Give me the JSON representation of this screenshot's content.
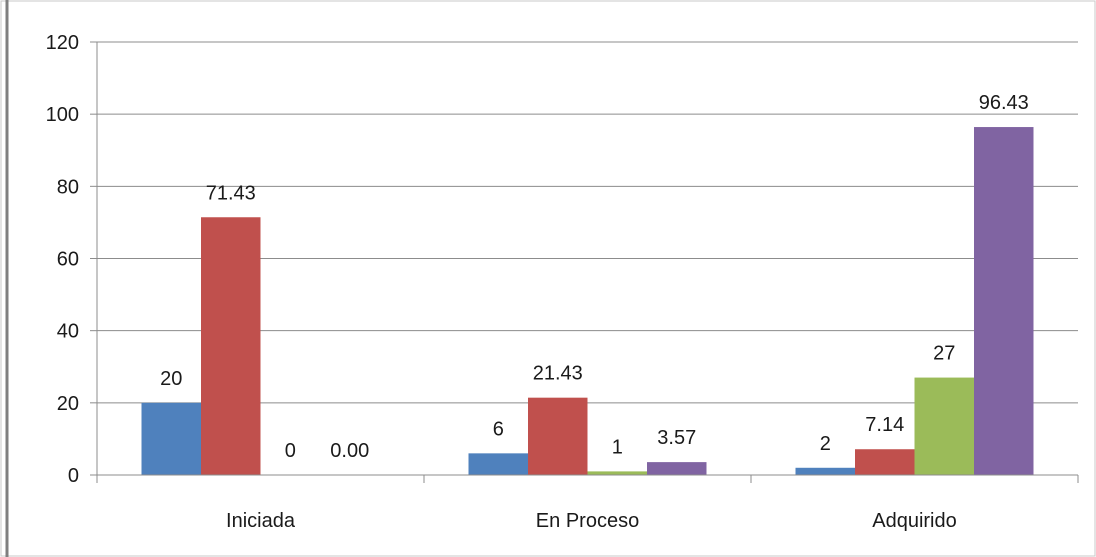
{
  "chart_data": {
    "type": "bar",
    "title": "",
    "xlabel": "",
    "ylabel": "",
    "ylim": [
      0,
      120
    ],
    "yticks": [
      0,
      20,
      40,
      60,
      80,
      100,
      120
    ],
    "grid": true,
    "categories": [
      "Iniciada",
      "En Proceso",
      "Adquirido"
    ],
    "series": [
      {
        "color": "#4f81bd",
        "values": [
          20,
          6,
          2
        ],
        "labels": [
          "20",
          "6",
          "2"
        ]
      },
      {
        "color": "#c0504d",
        "values": [
          71.43,
          21.43,
          7.14
        ],
        "labels": [
          "71.43",
          "21.43",
          "7.14"
        ]
      },
      {
        "color": "#9bbb59",
        "values": [
          0,
          1,
          27
        ],
        "labels": [
          "0",
          "1",
          "27"
        ]
      },
      {
        "color": "#8064a2",
        "values": [
          0,
          3.57,
          96.43
        ],
        "labels": [
          "0.00",
          "3.57",
          "96.43"
        ]
      }
    ]
  }
}
